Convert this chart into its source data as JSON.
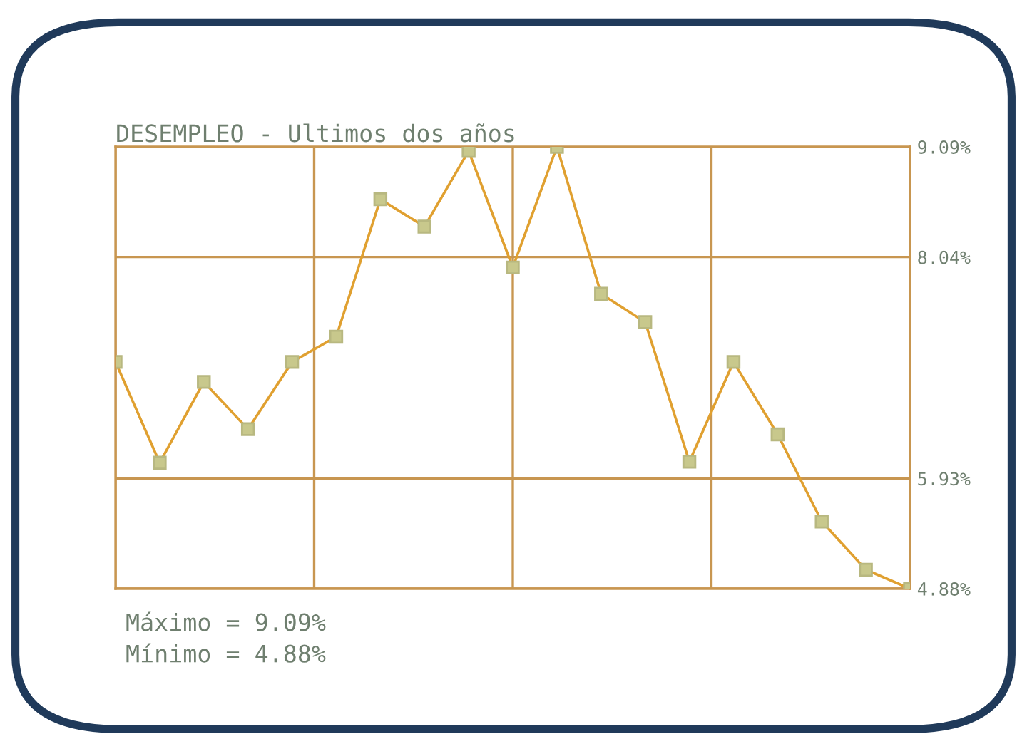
{
  "chart_data": {
    "type": "line",
    "title": "DESEMPLEO - Ultimos dos años",
    "categories": [
      null,
      null,
      null,
      null,
      null,
      null,
      null,
      null,
      null,
      null,
      null,
      null,
      null,
      null,
      null,
      null,
      null,
      null,
      null
    ],
    "series": [
      {
        "color": "#e0a030",
        "values": [
          7.04,
          6.08,
          6.85,
          6.4,
          7.04,
          7.28,
          8.59,
          8.33,
          9.05,
          7.94,
          9.09,
          7.69,
          7.42,
          6.09,
          7.04,
          6.35,
          5.52,
          5.06,
          4.88
        ]
      }
    ],
    "ylim": [
      4.88,
      9.09
    ],
    "yticks": [
      {
        "value": 4.88,
        "label": "4.88%"
      },
      {
        "value": 5.93,
        "label": "5.93%"
      },
      {
        "value": 8.04,
        "label": "8.04%"
      },
      {
        "value": 9.09,
        "label": "9.09%"
      }
    ],
    "tick_labels": "y",
    "grid": true,
    "marker": "square",
    "line_style": "solid",
    "annotations": [
      "Máximo = 9.09%",
      "Mínimo = 4.88%"
    ]
  }
}
